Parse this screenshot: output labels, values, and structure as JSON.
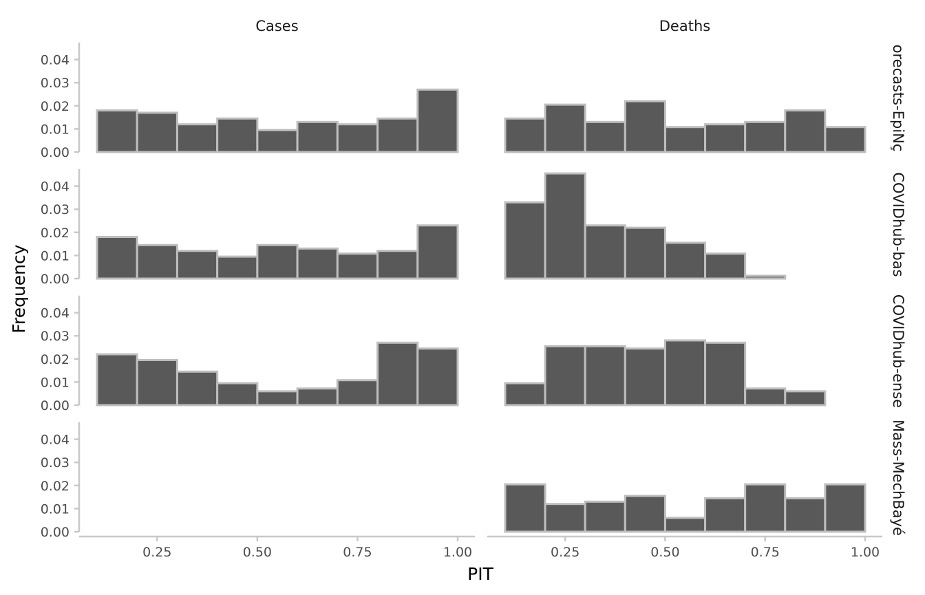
{
  "chart_data": {
    "type": "bar",
    "subtype": "faceted-histogram",
    "xlabel": "PIT",
    "ylabel": "Frequency",
    "xlim": [
      0.1,
      1.0
    ],
    "ylim": [
      0,
      0.045
    ],
    "x_ticks": [
      "0.25",
      "0.50",
      "0.75",
      "1.00"
    ],
    "x_tick_values": [
      0.25,
      0.5,
      0.75,
      1.0
    ],
    "y_ticks": [
      "0.00",
      "0.01",
      "0.02",
      "0.03",
      "0.04"
    ],
    "y_tick_values": [
      0,
      0.01,
      0.02,
      0.03,
      0.04
    ],
    "bin_edges": [
      0.1,
      0.2,
      0.3,
      0.4,
      0.5,
      0.6,
      0.7,
      0.8,
      0.9,
      1.0
    ],
    "columns": [
      "Cases",
      "Deaths"
    ],
    "rows": [
      "orecasts-EpiNç",
      "COVIDhub-bas",
      "COVIDhub-ense",
      "Mass-MechBayé"
    ],
    "panels": [
      {
        "row": 0,
        "col": 0,
        "values": [
          0.018,
          0.017,
          0.012,
          0.0145,
          0.0095,
          0.013,
          0.012,
          0.0145,
          0.027
        ]
      },
      {
        "row": 0,
        "col": 1,
        "values": [
          0.0145,
          0.0205,
          0.013,
          0.022,
          0.0108,
          0.012,
          0.013,
          0.018,
          0.0108
        ]
      },
      {
        "row": 1,
        "col": 0,
        "values": [
          0.018,
          0.0145,
          0.012,
          0.0095,
          0.0145,
          0.013,
          0.0108,
          0.012,
          0.023
        ]
      },
      {
        "row": 1,
        "col": 1,
        "values": [
          0.033,
          0.0455,
          0.023,
          0.022,
          0.0155,
          0.0108,
          0.0012,
          0.0,
          0.0
        ]
      },
      {
        "row": 2,
        "col": 0,
        "values": [
          0.022,
          0.0195,
          0.0145,
          0.0095,
          0.006,
          0.0072,
          0.0108,
          0.027,
          0.0245
        ]
      },
      {
        "row": 2,
        "col": 1,
        "values": [
          0.0095,
          0.0255,
          0.0255,
          0.0245,
          0.028,
          0.027,
          0.0072,
          0.006,
          0.0
        ]
      },
      {
        "row": 3,
        "col": 0,
        "values": []
      },
      {
        "row": 3,
        "col": 1,
        "values": [
          0.0205,
          0.012,
          0.013,
          0.0155,
          0.006,
          0.0145,
          0.0205,
          0.0145,
          0.0205
        ]
      }
    ],
    "grid": false,
    "legend": "none"
  }
}
